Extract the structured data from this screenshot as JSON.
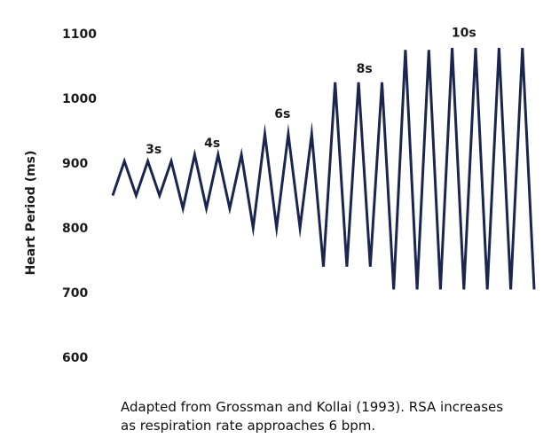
{
  "chart_data": {
    "type": "line",
    "title": "",
    "xlabel": "",
    "ylabel": "Heart Period (ms)",
    "y_ticks": [
      "1100",
      "1000",
      "900",
      "800",
      "700",
      "600"
    ],
    "ylim": [
      600,
      1100
    ],
    "grid": false,
    "legend": "none",
    "series_color": "#1b2650",
    "annotations": [
      {
        "text": "3s",
        "x": 3.5,
        "y": 915
      },
      {
        "text": "4s",
        "x": 8.5,
        "y": 925
      },
      {
        "text": "6s",
        "x": 14.5,
        "y": 970
      },
      {
        "text": "8s",
        "x": 21.5,
        "y": 1040
      },
      {
        "text": "10s",
        "x": 30,
        "y": 1095
      }
    ],
    "series": [
      {
        "x": [
          0,
          1,
          2,
          3,
          4,
          5,
          6,
          7,
          8,
          9,
          10,
          11,
          12,
          13,
          14,
          15,
          16,
          17,
          18,
          19,
          20,
          21,
          22,
          23,
          24,
          25,
          26,
          27,
          28,
          29,
          30,
          31,
          32,
          33,
          34,
          35,
          36
        ],
        "values": [
          850,
          903,
          850,
          903,
          850,
          903,
          830,
          913,
          830,
          913,
          830,
          913,
          800,
          945,
          800,
          945,
          800,
          945,
          740,
          1025,
          740,
          1025,
          740,
          1025,
          705,
          1075,
          705,
          1075,
          705,
          1078,
          705,
          1078,
          705,
          1078,
          705,
          1078,
          705
        ]
      }
    ]
  },
  "caption": {
    "line1": "Adapted from Grossman and Kollai (1993). RSA increases",
    "line2": "as respiration rate approaches 6 bpm."
  }
}
